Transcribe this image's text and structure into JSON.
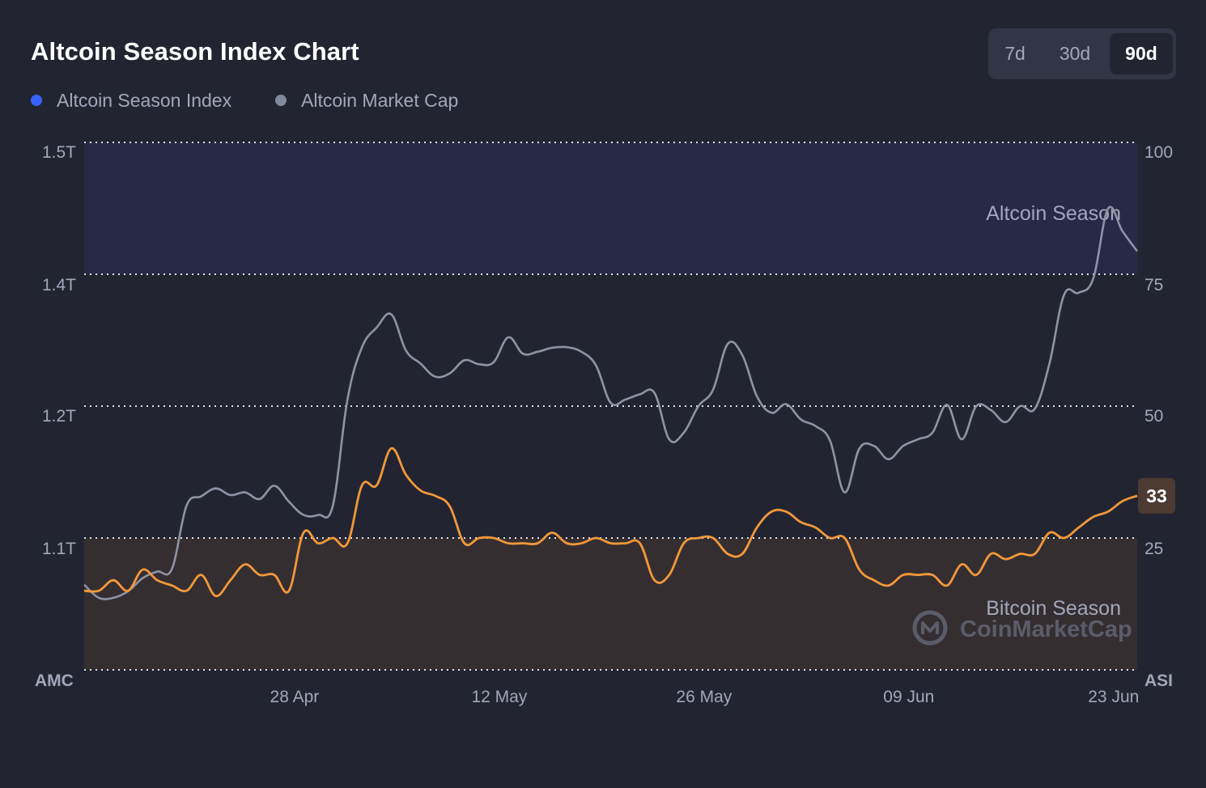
{
  "header": {
    "title": "Altcoin Season Index Chart"
  },
  "range_selector": {
    "options": [
      {
        "id": "7d",
        "label": "7d",
        "active": false
      },
      {
        "id": "30d",
        "label": "30d",
        "active": false
      },
      {
        "id": "90d",
        "label": "90d",
        "active": true
      }
    ]
  },
  "legend": {
    "items": [
      {
        "id": "asi",
        "label": "Altcoin Season Index",
        "color": "#3861fb"
      },
      {
        "id": "amc",
        "label": "Altcoin Market Cap",
        "color": "#808a9d"
      }
    ]
  },
  "colors": {
    "background": "#222531",
    "asi_line": "#f2983a",
    "amc_line": "#8e93a6",
    "altcoin_zone": "#262a47",
    "bitcoin_zone": "#352e31",
    "badge": "#4d3b32",
    "text_muted": "#a1a7bb",
    "gridline": "#dfe1e8"
  },
  "zones": {
    "altcoin_label": "Altcoin Season",
    "bitcoin_label": "Bitcoin Season"
  },
  "watermark": {
    "text": "CoinMarketCap",
    "icon": "coinmarketcap-logo-icon"
  },
  "current_badge": {
    "value": "33"
  },
  "chart_data": {
    "type": "line",
    "title": "Altcoin Season Index Chart",
    "x_ticks": [
      "28 Apr",
      "12 May",
      "26 May",
      "09 Jun",
      "23 Jun"
    ],
    "x_tick_day_index": [
      13,
      27,
      41,
      55,
      69
    ],
    "left_axis": {
      "title": "AMC",
      "ticks": [
        "1.5T",
        "1.4T",
        "1.2T",
        "1.1T"
      ]
    },
    "right_axis": {
      "title": "ASI",
      "ticks": [
        "100",
        "75",
        "50",
        "25"
      ],
      "ylim": [
        0,
        100
      ]
    },
    "thresholds": {
      "altcoin_season": 75,
      "bitcoin_season": 25
    },
    "grid": "horizontal-dotted",
    "legend_position": "top-left",
    "series": [
      {
        "name": "Altcoin Season Index",
        "axis": "right",
        "values": [
          15,
          15,
          17,
          15,
          19,
          17,
          16,
          15,
          18,
          14,
          17,
          20,
          18,
          18,
          15,
          26,
          24,
          25,
          24,
          35,
          35,
          42,
          37,
          34,
          33,
          31,
          24,
          25,
          25,
          24,
          24,
          24,
          26,
          24,
          24,
          25,
          24,
          24,
          24,
          17,
          18,
          24,
          25,
          25,
          22,
          22,
          27,
          30,
          30,
          28,
          27,
          25,
          25,
          19,
          17,
          16,
          18,
          18,
          18,
          16,
          20,
          18,
          22,
          21,
          22,
          22,
          26,
          25,
          27,
          29,
          30,
          32,
          33
        ]
      },
      {
        "name": "Altcoin Market Cap",
        "axis": "left",
        "values": [
          1.065,
          1.055,
          1.055,
          1.06,
          1.07,
          1.075,
          1.077,
          1.125,
          1.132,
          1.138,
          1.133,
          1.135,
          1.13,
          1.14,
          1.128,
          1.118,
          1.118,
          1.125,
          1.21,
          1.29,
          1.32,
          1.34,
          1.285,
          1.265,
          1.245,
          1.25,
          1.27,
          1.264,
          1.267,
          1.305,
          1.28,
          1.283,
          1.289,
          1.29,
          1.283,
          1.262,
          1.205,
          1.21,
          1.218,
          1.22,
          1.175,
          1.18,
          1.2,
          1.225,
          1.295,
          1.278,
          1.215,
          1.195,
          1.203,
          1.19,
          1.185,
          1.174,
          1.135,
          1.168,
          1.17,
          1.16,
          1.17,
          1.175,
          1.18,
          1.202,
          1.175,
          1.2,
          1.197,
          1.188,
          1.2,
          1.198,
          1.265,
          1.37,
          1.373,
          1.395,
          1.45,
          1.433,
          1.418
        ]
      }
    ]
  }
}
